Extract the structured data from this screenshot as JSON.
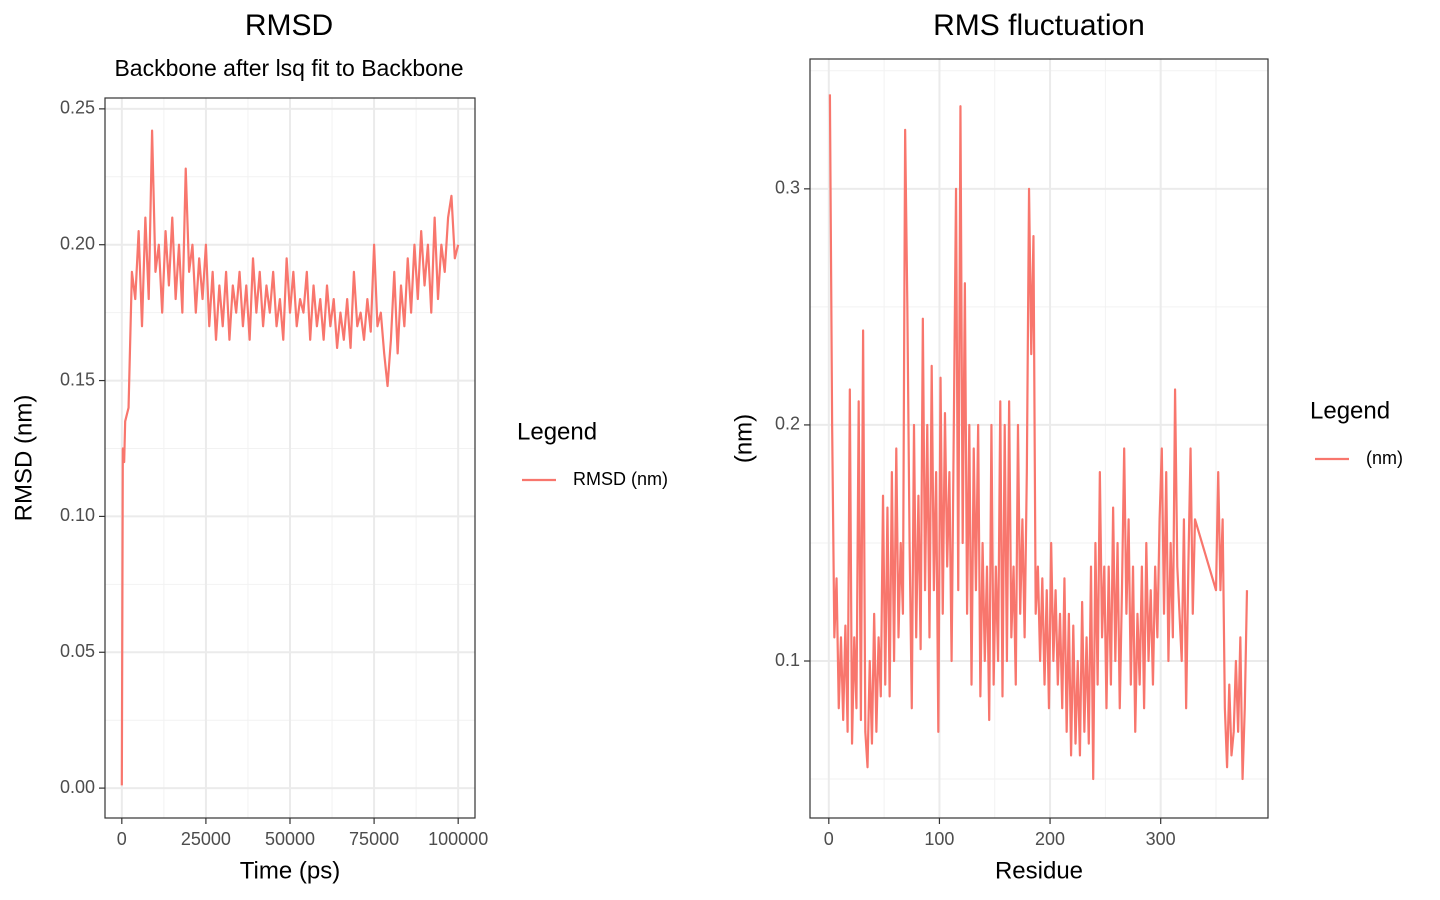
{
  "chart_data": [
    {
      "type": "line",
      "title": "RMSD",
      "subtitle": "Backbone after lsq fit to Backbone",
      "x_label": "Time (ps)",
      "y_label": "RMSD (nm)",
      "legend_title": "Legend",
      "legend": "right",
      "grid": true,
      "xlim": [
        -5000,
        105000
      ],
      "ylim": [
        -0.011,
        0.254
      ],
      "xticks": [
        0,
        25000,
        50000,
        75000,
        100000
      ],
      "yticks": [
        {
          "value": 0,
          "label": "0.00"
        },
        {
          "value": 0.05,
          "label": "0.05"
        },
        {
          "value": 0.1,
          "label": "0.10"
        },
        {
          "value": 0.15,
          "label": "0.15"
        },
        {
          "value": 0.2,
          "label": "0.20"
        },
        {
          "value": 0.25,
          "label": "0.25"
        }
      ],
      "x": [
        0,
        300,
        700,
        1000,
        2000,
        3000,
        4000,
        5000,
        6000,
        7000,
        8000,
        9000,
        10000,
        11000,
        12000,
        13000,
        14000,
        15000,
        16000,
        17000,
        18000,
        19000,
        20000,
        21000,
        22000,
        23000,
        24000,
        25000,
        26000,
        27000,
        28000,
        29000,
        30000,
        31000,
        32000,
        33000,
        34000,
        35000,
        36000,
        37000,
        38000,
        39000,
        40000,
        41000,
        42000,
        43000,
        44000,
        45000,
        46000,
        47000,
        48000,
        49000,
        50000,
        51000,
        52000,
        53000,
        54000,
        55000,
        56000,
        57000,
        58000,
        59000,
        60000,
        61000,
        62000,
        63000,
        64000,
        65000,
        66000,
        67000,
        68000,
        69000,
        70000,
        71000,
        72000,
        73000,
        74000,
        75000,
        76000,
        77000,
        78000,
        79000,
        80000,
        81000,
        82000,
        83000,
        84000,
        85000,
        86000,
        87000,
        88000,
        89000,
        90000,
        91000,
        92000,
        93000,
        94000,
        95000,
        96000,
        97000,
        98000,
        99000,
        100000
      ],
      "series": [
        {
          "name": "RMSD (nm)",
          "color": "#F8766D",
          "values": [
            0.001,
            0.125,
            0.12,
            0.135,
            0.14,
            0.19,
            0.18,
            0.205,
            0.17,
            0.21,
            0.18,
            0.242,
            0.19,
            0.2,
            0.175,
            0.205,
            0.185,
            0.21,
            0.18,
            0.2,
            0.175,
            0.228,
            0.19,
            0.2,
            0.175,
            0.195,
            0.18,
            0.2,
            0.17,
            0.19,
            0.165,
            0.185,
            0.17,
            0.19,
            0.165,
            0.185,
            0.175,
            0.19,
            0.17,
            0.185,
            0.165,
            0.195,
            0.175,
            0.19,
            0.17,
            0.185,
            0.175,
            0.19,
            0.17,
            0.18,
            0.165,
            0.195,
            0.175,
            0.19,
            0.17,
            0.18,
            0.175,
            0.19,
            0.165,
            0.185,
            0.17,
            0.18,
            0.165,
            0.185,
            0.17,
            0.18,
            0.162,
            0.175,
            0.165,
            0.18,
            0.162,
            0.19,
            0.17,
            0.175,
            0.165,
            0.18,
            0.168,
            0.2,
            0.17,
            0.175,
            0.16,
            0.148,
            0.165,
            0.19,
            0.16,
            0.185,
            0.17,
            0.195,
            0.175,
            0.2,
            0.18,
            0.205,
            0.185,
            0.2,
            0.175,
            0.21,
            0.18,
            0.2,
            0.19,
            0.21,
            0.218,
            0.195,
            0.2
          ]
        }
      ]
    },
    {
      "type": "line",
      "title": "RMS fluctuation",
      "x_label": "Residue",
      "y_label": "(nm)",
      "legend_title": "Legend",
      "legend": "right",
      "grid": true,
      "xlim": [
        -17,
        397
      ],
      "ylim": [
        0.0335,
        0.355
      ],
      "xticks": [
        0,
        100,
        200,
        300
      ],
      "yticks": [
        0.1,
        0.2,
        0.3
      ],
      "x": [
        1,
        3,
        5,
        7,
        9,
        11,
        13,
        15,
        17,
        19,
        21,
        23,
        25,
        27,
        29,
        31,
        33,
        35,
        37,
        39,
        41,
        43,
        45,
        47,
        49,
        51,
        53,
        55,
        57,
        59,
        61,
        63,
        65,
        67,
        69,
        71,
        73,
        75,
        77,
        79,
        81,
        83,
        85,
        87,
        89,
        91,
        93,
        95,
        97,
        99,
        101,
        103,
        105,
        107,
        109,
        111,
        113,
        115,
        117,
        119,
        121,
        123,
        125,
        127,
        129,
        131,
        133,
        135,
        137,
        139,
        141,
        143,
        145,
        147,
        149,
        151,
        153,
        155,
        157,
        159,
        161,
        163,
        165,
        167,
        169,
        171,
        173,
        175,
        177,
        179,
        181,
        183,
        185,
        187,
        189,
        191,
        193,
        195,
        197,
        199,
        201,
        203,
        205,
        207,
        209,
        211,
        213,
        215,
        217,
        219,
        221,
        223,
        225,
        227,
        229,
        231,
        233,
        235,
        237,
        239,
        241,
        243,
        245,
        247,
        249,
        251,
        253,
        255,
        257,
        259,
        261,
        263,
        265,
        267,
        269,
        271,
        273,
        275,
        277,
        279,
        281,
        283,
        285,
        287,
        289,
        291,
        293,
        295,
        297,
        299,
        301,
        303,
        305,
        307,
        309,
        311,
        313,
        315,
        317,
        319,
        321,
        323,
        325,
        327,
        329,
        331,
        350,
        352,
        354,
        356,
        358,
        360,
        362,
        364,
        366,
        368,
        370,
        372,
        374,
        376,
        378
      ],
      "series": [
        {
          "name": "(nm)",
          "color": "#F8766D",
          "values": [
            0.34,
            0.2,
            0.11,
            0.135,
            0.08,
            0.11,
            0.075,
            0.115,
            0.07,
            0.215,
            0.065,
            0.11,
            0.08,
            0.21,
            0.075,
            0.24,
            0.07,
            0.055,
            0.1,
            0.065,
            0.12,
            0.07,
            0.11,
            0.085,
            0.17,
            0.09,
            0.165,
            0.085,
            0.18,
            0.1,
            0.19,
            0.11,
            0.15,
            0.12,
            0.325,
            0.25,
            0.15,
            0.08,
            0.2,
            0.11,
            0.17,
            0.105,
            0.245,
            0.13,
            0.2,
            0.11,
            0.225,
            0.13,
            0.18,
            0.07,
            0.22,
            0.12,
            0.205,
            0.14,
            0.18,
            0.1,
            0.2,
            0.3,
            0.13,
            0.335,
            0.15,
            0.26,
            0.12,
            0.2,
            0.09,
            0.19,
            0.13,
            0.2,
            0.085,
            0.15,
            0.1,
            0.14,
            0.075,
            0.2,
            0.09,
            0.14,
            0.1,
            0.21,
            0.085,
            0.2,
            0.1,
            0.21,
            0.11,
            0.14,
            0.09,
            0.2,
            0.12,
            0.16,
            0.11,
            0.18,
            0.3,
            0.23,
            0.28,
            0.12,
            0.14,
            0.1,
            0.135,
            0.09,
            0.13,
            0.08,
            0.15,
            0.1,
            0.13,
            0.09,
            0.12,
            0.08,
            0.135,
            0.07,
            0.12,
            0.06,
            0.115,
            0.065,
            0.1,
            0.06,
            0.125,
            0.07,
            0.11,
            0.065,
            0.14,
            0.05,
            0.15,
            0.09,
            0.18,
            0.11,
            0.14,
            0.08,
            0.14,
            0.09,
            0.165,
            0.1,
            0.15,
            0.08,
            0.13,
            0.19,
            0.12,
            0.16,
            0.09,
            0.14,
            0.07,
            0.12,
            0.09,
            0.14,
            0.08,
            0.15,
            0.1,
            0.13,
            0.09,
            0.14,
            0.11,
            0.16,
            0.19,
            0.12,
            0.18,
            0.1,
            0.15,
            0.11,
            0.215,
            0.14,
            0.12,
            0.1,
            0.16,
            0.08,
            0.14,
            0.19,
            0.12,
            0.16,
            0.13,
            0.18,
            0.13,
            0.16,
            0.08,
            0.055,
            0.09,
            0.06,
            0.07,
            0.1,
            0.07,
            0.11,
            0.05,
            0.08,
            0.13
          ]
        }
      ]
    }
  ]
}
